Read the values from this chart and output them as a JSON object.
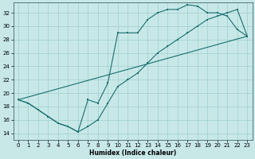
{
  "xlabel": "Humidex (Indice chaleur)",
  "xlim": [
    -0.5,
    23.5
  ],
  "ylim": [
    13.0,
    33.5
  ],
  "yticks": [
    14,
    16,
    18,
    20,
    22,
    24,
    26,
    28,
    30,
    32
  ],
  "xticks": [
    0,
    1,
    2,
    3,
    4,
    5,
    6,
    7,
    8,
    9,
    10,
    11,
    12,
    13,
    14,
    15,
    16,
    17,
    18,
    19,
    20,
    21,
    22,
    23
  ],
  "bg_color": "#c8e8e8",
  "grid_color": "#9ecece",
  "line_color": "#1a6e6e",
  "line1_x": [
    0,
    1,
    2,
    3,
    4,
    5,
    6,
    7,
    8,
    9,
    10,
    11,
    12,
    13,
    14,
    15,
    16,
    17,
    18,
    19,
    20,
    21,
    22,
    23
  ],
  "line1_y": [
    19.0,
    18.5,
    17.5,
    16.5,
    15.5,
    15.0,
    14.2,
    19.0,
    18.5,
    21.5,
    29.0,
    29.0,
    29.0,
    31.0,
    32.0,
    32.5,
    32.5,
    33.2,
    33.0,
    32.0,
    32.0,
    31.5,
    29.5,
    28.5
  ],
  "line2_x": [
    0,
    1,
    2,
    3,
    4,
    5,
    6,
    7,
    8,
    9,
    10,
    11,
    12,
    13,
    14,
    15,
    16,
    17,
    18,
    19,
    20,
    21,
    22,
    23
  ],
  "line2_y": [
    19.0,
    18.5,
    17.5,
    16.5,
    15.5,
    15.0,
    14.2,
    15.0,
    16.0,
    18.5,
    21.0,
    22.0,
    23.0,
    24.5,
    26.0,
    27.0,
    28.0,
    29.0,
    30.0,
    31.0,
    31.5,
    32.0,
    32.5,
    28.5
  ],
  "line3_x": [
    0,
    23
  ],
  "line3_y": [
    19.0,
    28.5
  ]
}
